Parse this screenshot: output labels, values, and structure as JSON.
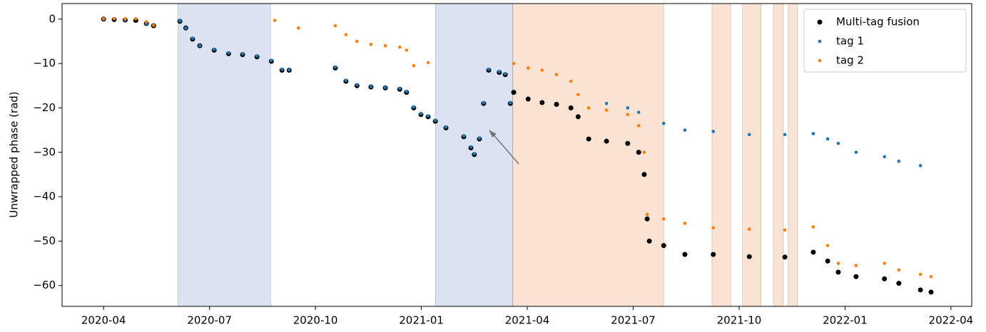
{
  "chart_data": {
    "type": "scatter",
    "ylabel": "Unwrapped phase (rad)",
    "xlim": [
      2020.152,
      2022.299
    ],
    "ylim": [
      -64.7,
      3.5
    ],
    "xticks": [
      {
        "value": 2020.25,
        "label": "2020-04"
      },
      {
        "value": 2020.5,
        "label": "2020-07"
      },
      {
        "value": 2020.75,
        "label": "2020-10"
      },
      {
        "value": 2021.0,
        "label": "2021-01"
      },
      {
        "value": 2021.25,
        "label": "2021-04"
      },
      {
        "value": 2021.5,
        "label": "2021-07"
      },
      {
        "value": 2021.75,
        "label": "2021-10"
      },
      {
        "value": 2022.0,
        "label": "2022-01"
      },
      {
        "value": 2022.25,
        "label": "2022-04"
      }
    ],
    "yticks": [
      0,
      {
        "value": -10,
        "label": "−10"
      },
      {
        "value": -20,
        "label": "−20"
      },
      {
        "value": -30,
        "label": "−30"
      },
      {
        "value": -40,
        "label": "−40"
      },
      {
        "value": -50,
        "label": "−50"
      },
      {
        "value": -60,
        "label": "−60"
      }
    ],
    "legend": "upper right",
    "spans": [
      {
        "x": [
          2020.425,
          2020.644
        ],
        "color": "#dbe3f3"
      },
      {
        "x": [
          2021.033,
          2021.215
        ],
        "color": "#dbe3f3"
      },
      {
        "x": [
          2021.216,
          2021.572
        ],
        "color": "#fbe3d3"
      },
      {
        "x": [
          2021.686,
          2021.73
        ],
        "color": "#fbe3d3"
      },
      {
        "x": [
          2021.758,
          2021.802
        ],
        "color": "#fbe3d3"
      },
      {
        "x": [
          2021.831,
          2021.854
        ],
        "color": "#fbe3d3"
      },
      {
        "x": [
          2021.866,
          2021.888
        ],
        "color": "#fbe3d3"
      }
    ],
    "series": [
      {
        "name": "Multi-tag fusion",
        "color": "#000000",
        "x": [
          2020.25,
          2020.275,
          2020.301,
          2020.326,
          2020.351,
          2020.368,
          2020.43,
          2020.444,
          2020.46,
          2020.477,
          2020.511,
          2020.545,
          2020.578,
          2020.612,
          2020.646,
          2020.671,
          2020.688,
          2020.797,
          2020.822,
          2020.848,
          2020.881,
          2020.915,
          2020.949,
          2020.965,
          2020.982,
          2020.999,
          2021.016,
          2021.033,
          2021.058,
          2021.1,
          2021.117,
          2021.125,
          2021.137,
          2021.147,
          2021.159,
          2021.184,
          2021.198,
          2021.21,
          2021.218,
          2021.252,
          2021.285,
          2021.319,
          2021.353,
          2021.37,
          2021.395,
          2021.437,
          2021.487,
          2021.513,
          2021.526,
          2021.533,
          2021.538,
          2021.572,
          2021.622,
          2021.689,
          2021.774,
          2021.858,
          2021.925,
          2021.959,
          2021.984,
          2022.026,
          2022.093,
          2022.127,
          2022.178,
          2022.203
        ],
        "values": [
          0,
          -0.1,
          -0.2,
          -0.3,
          -1.0,
          -1.5,
          -0.5,
          -2,
          -4.5,
          -6,
          -7,
          -7.8,
          -8,
          -8.5,
          -9.5,
          -11.5,
          -11.5,
          -11,
          -14,
          -15,
          -15.3,
          -15.5,
          -15.8,
          -16.5,
          -20,
          -21.5,
          -22,
          -23,
          -24.5,
          -26.5,
          -29,
          -30.5,
          -27,
          -19,
          -11.5,
          -12,
          -12.5,
          -19,
          -16.5,
          -18,
          -18.8,
          -19.2,
          -20,
          -22,
          -27,
          -27.5,
          -28,
          -30,
          -35,
          -45,
          -50,
          -51,
          -53,
          -53,
          -53.5,
          -53.6,
          -52.5,
          -54.5,
          -57,
          -58,
          -58.5,
          -59.5,
          -61,
          -61.5
        ]
      },
      {
        "name": "tag 1",
        "color": "#1f77b4",
        "x": [
          2020.25,
          2020.301,
          2020.351,
          2020.43,
          2020.444,
          2020.46,
          2020.477,
          2020.511,
          2020.545,
          2020.578,
          2020.612,
          2020.646,
          2020.671,
          2020.688,
          2020.797,
          2020.822,
          2020.848,
          2020.881,
          2020.915,
          2020.949,
          2020.965,
          2020.982,
          2020.999,
          2021.016,
          2021.033,
          2021.058,
          2021.1,
          2021.117,
          2021.125,
          2021.137,
          2021.147,
          2021.159,
          2021.184,
          2021.198,
          2021.21,
          2021.437,
          2021.487,
          2021.513,
          2021.572,
          2021.622,
          2021.689,
          2021.774,
          2021.858,
          2021.925,
          2021.959,
          2021.984,
          2022.026,
          2022.093,
          2022.127,
          2022.178
        ],
        "values": [
          0,
          -0.2,
          -1.0,
          -0.4,
          -2,
          -4.3,
          -6,
          -6.8,
          -7.6,
          -7.8,
          -8.3,
          -9.3,
          -11.3,
          -11.4,
          -10.8,
          -13.8,
          -14.8,
          -15.2,
          -15.4,
          -15.6,
          -16.3,
          -19.8,
          -21.3,
          -21.8,
          -22.8,
          -24.3,
          -26.3,
          -28.8,
          -30.3,
          -26.8,
          -18.8,
          -11.3,
          -11.8,
          -12.3,
          -18.8,
          -19,
          -20,
          -21,
          -23.5,
          -25,
          -25.3,
          -26,
          -26,
          -25.8,
          -27,
          -28,
          -30,
          -31,
          -32,
          -33
        ]
      },
      {
        "name": "tag 2",
        "color": "#ff7f0e",
        "x": [
          2020.25,
          2020.275,
          2020.301,
          2020.326,
          2020.351,
          2020.368,
          2020.654,
          2020.71,
          2020.797,
          2020.822,
          2020.848,
          2020.881,
          2020.915,
          2020.949,
          2020.965,
          2020.982,
          2021.016,
          2021.218,
          2021.252,
          2021.285,
          2021.319,
          2021.353,
          2021.37,
          2021.395,
          2021.437,
          2021.487,
          2021.513,
          2021.526,
          2021.533,
          2021.572,
          2021.622,
          2021.689,
          2021.774,
          2021.858,
          2021.925,
          2021.959,
          2021.984,
          2022.026,
          2022.093,
          2022.127,
          2022.178,
          2022.203
        ],
        "values": [
          0.1,
          0.1,
          0.1,
          0.1,
          -0.6,
          -1.4,
          -0.3,
          -2,
          -1.5,
          -3.5,
          -5,
          -5.7,
          -6,
          -6.3,
          -7,
          -10.5,
          -9.8,
          -10,
          -11,
          -11.5,
          -12.5,
          -14,
          -17,
          -20,
          -20.5,
          -21.5,
          -24,
          -30,
          -44,
          -45,
          -46,
          -47,
          -47.3,
          -47.5,
          -46.8,
          -51,
          -55,
          -55.5,
          -55,
          -56.5,
          -57.5,
          -58
        ]
      }
    ]
  }
}
